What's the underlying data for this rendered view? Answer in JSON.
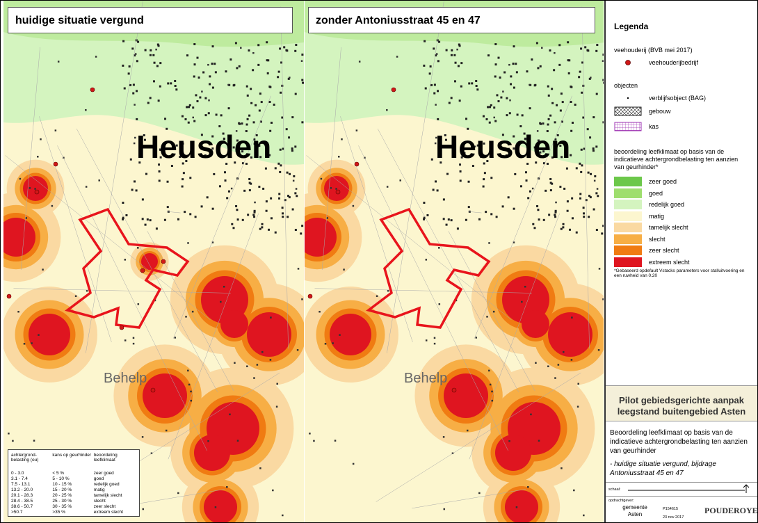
{
  "maps": [
    {
      "title": "huidige situatie vergund",
      "town": "Heusden",
      "hamlet": "Behelp"
    },
    {
      "title": "zonder Antoniusstraat 45 en 47",
      "town": "Heusden",
      "hamlet": "Behelp"
    }
  ],
  "class_table": {
    "headers": [
      "achtergrond-belasting (ou)",
      "kans op geurhinder",
      "beoordeling leefklimaat"
    ],
    "rows": [
      [
        "0 - 3.0",
        "< 5 %",
        "zeer goed"
      ],
      [
        "3.1 - 7.4",
        "5 - 10 %",
        "goed"
      ],
      [
        "7.5 - 13.1",
        "10 - 15 %",
        "redelijk goed"
      ],
      [
        "13.2 - 20.0",
        "15 - 20 %",
        "matig"
      ],
      [
        "20.1 - 28.3",
        "20 - 25 %",
        "tamelijk slecht"
      ],
      [
        "28.4 - 38.5",
        "25 - 30 %",
        "slecht"
      ],
      [
        "38.6 - 50.7",
        "30 - 35 %",
        "zeer slecht"
      ],
      [
        ">50.7",
        ">35 %",
        "extreem slecht"
      ]
    ]
  },
  "legend": {
    "title": "Legenda",
    "farm_heading": "veehouderij (BVB mei 2017)",
    "farm_item": "veehouderijbedrijf",
    "objects_heading": "objecten",
    "object_items": [
      "verblijfsobject (BAG)",
      "gebouw",
      "kas"
    ],
    "classes_heading": "beoordeling leefklimaat op basis van de indicatieve achtergrondbelasting ten aanzien van geurhinder*",
    "classes": [
      {
        "label": "zeer goed",
        "color": "#6cc84a"
      },
      {
        "label": "goed",
        "color": "#9ede6e"
      },
      {
        "label": "redelijk goed",
        "color": "#d4f4bf"
      },
      {
        "label": "matig",
        "color": "#fcf6cf"
      },
      {
        "label": "tamelijk slecht",
        "color": "#fad9a2"
      },
      {
        "label": "slecht",
        "color": "#f7ae45"
      },
      {
        "label": "zeer slecht",
        "color": "#f07b12"
      },
      {
        "label": "extreem slecht",
        "color": "#df1520"
      }
    ],
    "footnote": "*Gebaseerd opdefault Vstacks parameters voor stalluitvoering en een ruwheid van 0.20"
  },
  "project_title": "Pilot gebiedsgerichte aanpak leegstand buitengebied Asten",
  "description": "Beoordeling leefklimaat op basis van de indicatieve achtergrondbelasting ten aanzien van geurhinder",
  "subtitle": "- huidige situatie vergund, bijdrage Antoniusstraat 45 en 47",
  "scale_label": "schaal:",
  "client_label": "opdrachtgever:",
  "client": "gemeente Asten",
  "project_number": "P154615",
  "date": "23 nov 2017",
  "company": "POUDEROYEN"
}
